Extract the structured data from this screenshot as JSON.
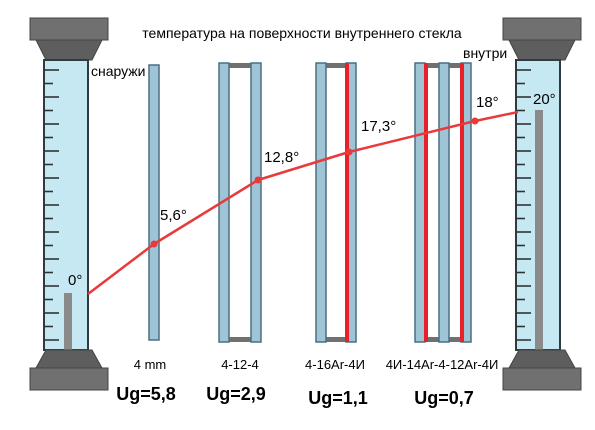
{
  "title": "температура на поверхности внутреннего стекла",
  "labels": {
    "outside": "снаружи",
    "inside": "внутри"
  },
  "temperatures": [
    {
      "id": "t-outside",
      "label": "0°",
      "value": 0
    },
    {
      "id": "t-pane1",
      "label": "5,6°",
      "value": 5.6
    },
    {
      "id": "t-pane2",
      "label": "12,8°",
      "value": 12.8
    },
    {
      "id": "t-pane3",
      "label": "17,3°",
      "value": 17.3
    },
    {
      "id": "t-pane4",
      "label": "18°",
      "value": 18
    },
    {
      "id": "t-inside",
      "label": "20°",
      "value": 20
    }
  ],
  "glazing": [
    {
      "name": "4 mm",
      "ug": "Ug=5,8"
    },
    {
      "name": "4-12-4",
      "ug": "Ug=2,9"
    },
    {
      "name": "4-16Ar-4И",
      "ug": "Ug=1,1"
    },
    {
      "name": "4И-14Ar-4-12Ar-4И",
      "ug": "Ug=0,7"
    }
  ],
  "colors": {
    "glass": "#9fc4d6",
    "glass_edge": "#4a6f82",
    "coating": "#e8202a",
    "line": "#e83a3a",
    "thermo_fill": "#c6e8f2",
    "thermo_cap": "#6b6b6b",
    "mercury": "#8a8a8a"
  }
}
